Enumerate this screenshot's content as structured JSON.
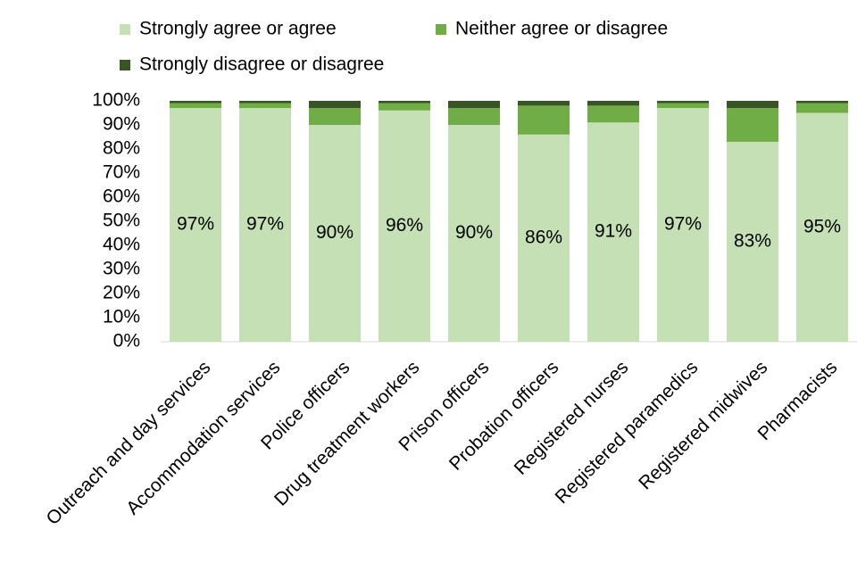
{
  "chart_data": {
    "type": "stacked_bar",
    "categories": [
      "Outreach and day services",
      "Accommodation services",
      "Police officers",
      "Drug treatment workers",
      "Prison officers",
      "Probation officers",
      "Registered nurses",
      "Registered paramedics",
      "Registered midwives",
      "Pharmacists"
    ],
    "series": [
      {
        "name": "Strongly agree or agree",
        "color": "#c5e0b4",
        "values": [
          97,
          97,
          90,
          96,
          90,
          86,
          91,
          97,
          83,
          95
        ],
        "value_labels": [
          "97%",
          "97%",
          "90%",
          "96%",
          "90%",
          "86%",
          "91%",
          "97%",
          "83%",
          "95%"
        ]
      },
      {
        "name": "Neither agree or disagree",
        "color": "#70ad47",
        "values": [
          2,
          2,
          7,
          3,
          7,
          12,
          7,
          2,
          14,
          4
        ]
      },
      {
        "name": "Strongly disagree or disagree",
        "color": "#375623",
        "values": [
          1,
          1,
          3,
          1,
          3,
          2,
          2,
          1,
          3,
          1
        ]
      }
    ],
    "ylim": [
      0,
      100
    ],
    "yticks": [
      {
        "value": 0,
        "label": "0%"
      },
      {
        "value": 10,
        "label": "10%"
      },
      {
        "value": 20,
        "label": "20%"
      },
      {
        "value": 30,
        "label": "30%"
      },
      {
        "value": 40,
        "label": "40%"
      },
      {
        "value": 50,
        "label": "50%"
      },
      {
        "value": 60,
        "label": "60%"
      },
      {
        "value": 70,
        "label": "70%"
      },
      {
        "value": 80,
        "label": "80%"
      },
      {
        "value": 90,
        "label": "90%"
      },
      {
        "value": 100,
        "label": "100%"
      }
    ],
    "legend": "top",
    "grid": false
  }
}
